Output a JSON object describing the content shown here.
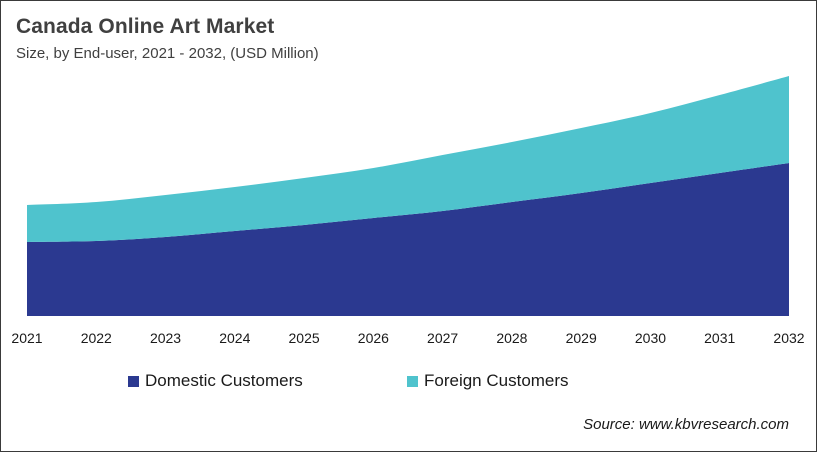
{
  "chart_data": {
    "type": "area",
    "stacked": true,
    "title": "Canada  Online Art Market",
    "subtitle": "Size, by End-user, 2021 - 2032, (USD Million)",
    "xlabel": "",
    "ylabel": "",
    "y_axis_visible": false,
    "grid": false,
    "categories": [
      "2021",
      "2022",
      "2023",
      "2024",
      "2025",
      "2026",
      "2027",
      "2028",
      "2029",
      "2030",
      "2031",
      "2032"
    ],
    "series": [
      {
        "name": "Domestic Customers",
        "color": "#2B3990",
        "values": [
          74,
          75,
          79,
          85,
          91,
          98,
          105,
          114,
          123,
          133,
          143,
          153
        ]
      },
      {
        "name": "Foreign Customers",
        "color": "#4FC3CD",
        "values": [
          37,
          39,
          42,
          44,
          47,
          50,
          56,
          60,
          65,
          70,
          78,
          87
        ]
      }
    ],
    "ylim": [
      0,
      260
    ],
    "legend_position": "bottom",
    "source": "Source: www.kbvresearch.com"
  }
}
